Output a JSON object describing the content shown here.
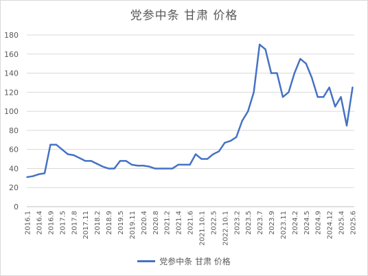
{
  "chart_data": {
    "type": "line",
    "title": "党参中条 甘肃 价格",
    "xlabel": "",
    "ylabel": "",
    "ylim": [
      0,
      180
    ],
    "yticks": [
      0,
      20,
      40,
      60,
      80,
      100,
      120,
      140,
      160,
      180
    ],
    "grid": true,
    "legend_position": "bottom",
    "color": "#4472c4",
    "x_tick_labels": [
      "2016.1",
      "2016.4",
      "2016.9",
      "2017.5",
      "2017.8",
      "2017.11",
      "2018.2",
      "2018.9",
      "2019.5",
      "2019.11",
      "2020.4",
      "2020.8",
      "2021.2",
      "2021.4",
      "2021.6",
      "2021.10.1",
      "2022.5",
      "2022.10.1",
      "2023.2",
      "2023.5",
      "2023.7",
      "2023.9",
      "2023.11",
      "2024.2",
      "2024.5",
      "2024.9",
      "2024.12",
      "2025.4",
      "2025.6"
    ],
    "series": [
      {
        "name": "党参中条 甘肃 价格",
        "values": [
          31,
          32,
          34,
          35,
          65,
          65,
          60,
          55,
          54,
          51,
          48,
          48,
          45,
          42,
          40,
          40,
          48,
          48,
          44,
          43,
          43,
          42,
          40,
          40,
          40,
          40,
          44,
          44,
          44,
          55,
          50,
          50,
          55,
          58,
          67,
          69,
          73,
          90,
          100,
          120,
          170,
          165,
          140,
          140,
          115,
          120,
          140,
          155,
          150,
          135,
          115,
          115,
          125,
          105,
          115,
          85,
          125
        ]
      }
    ]
  }
}
